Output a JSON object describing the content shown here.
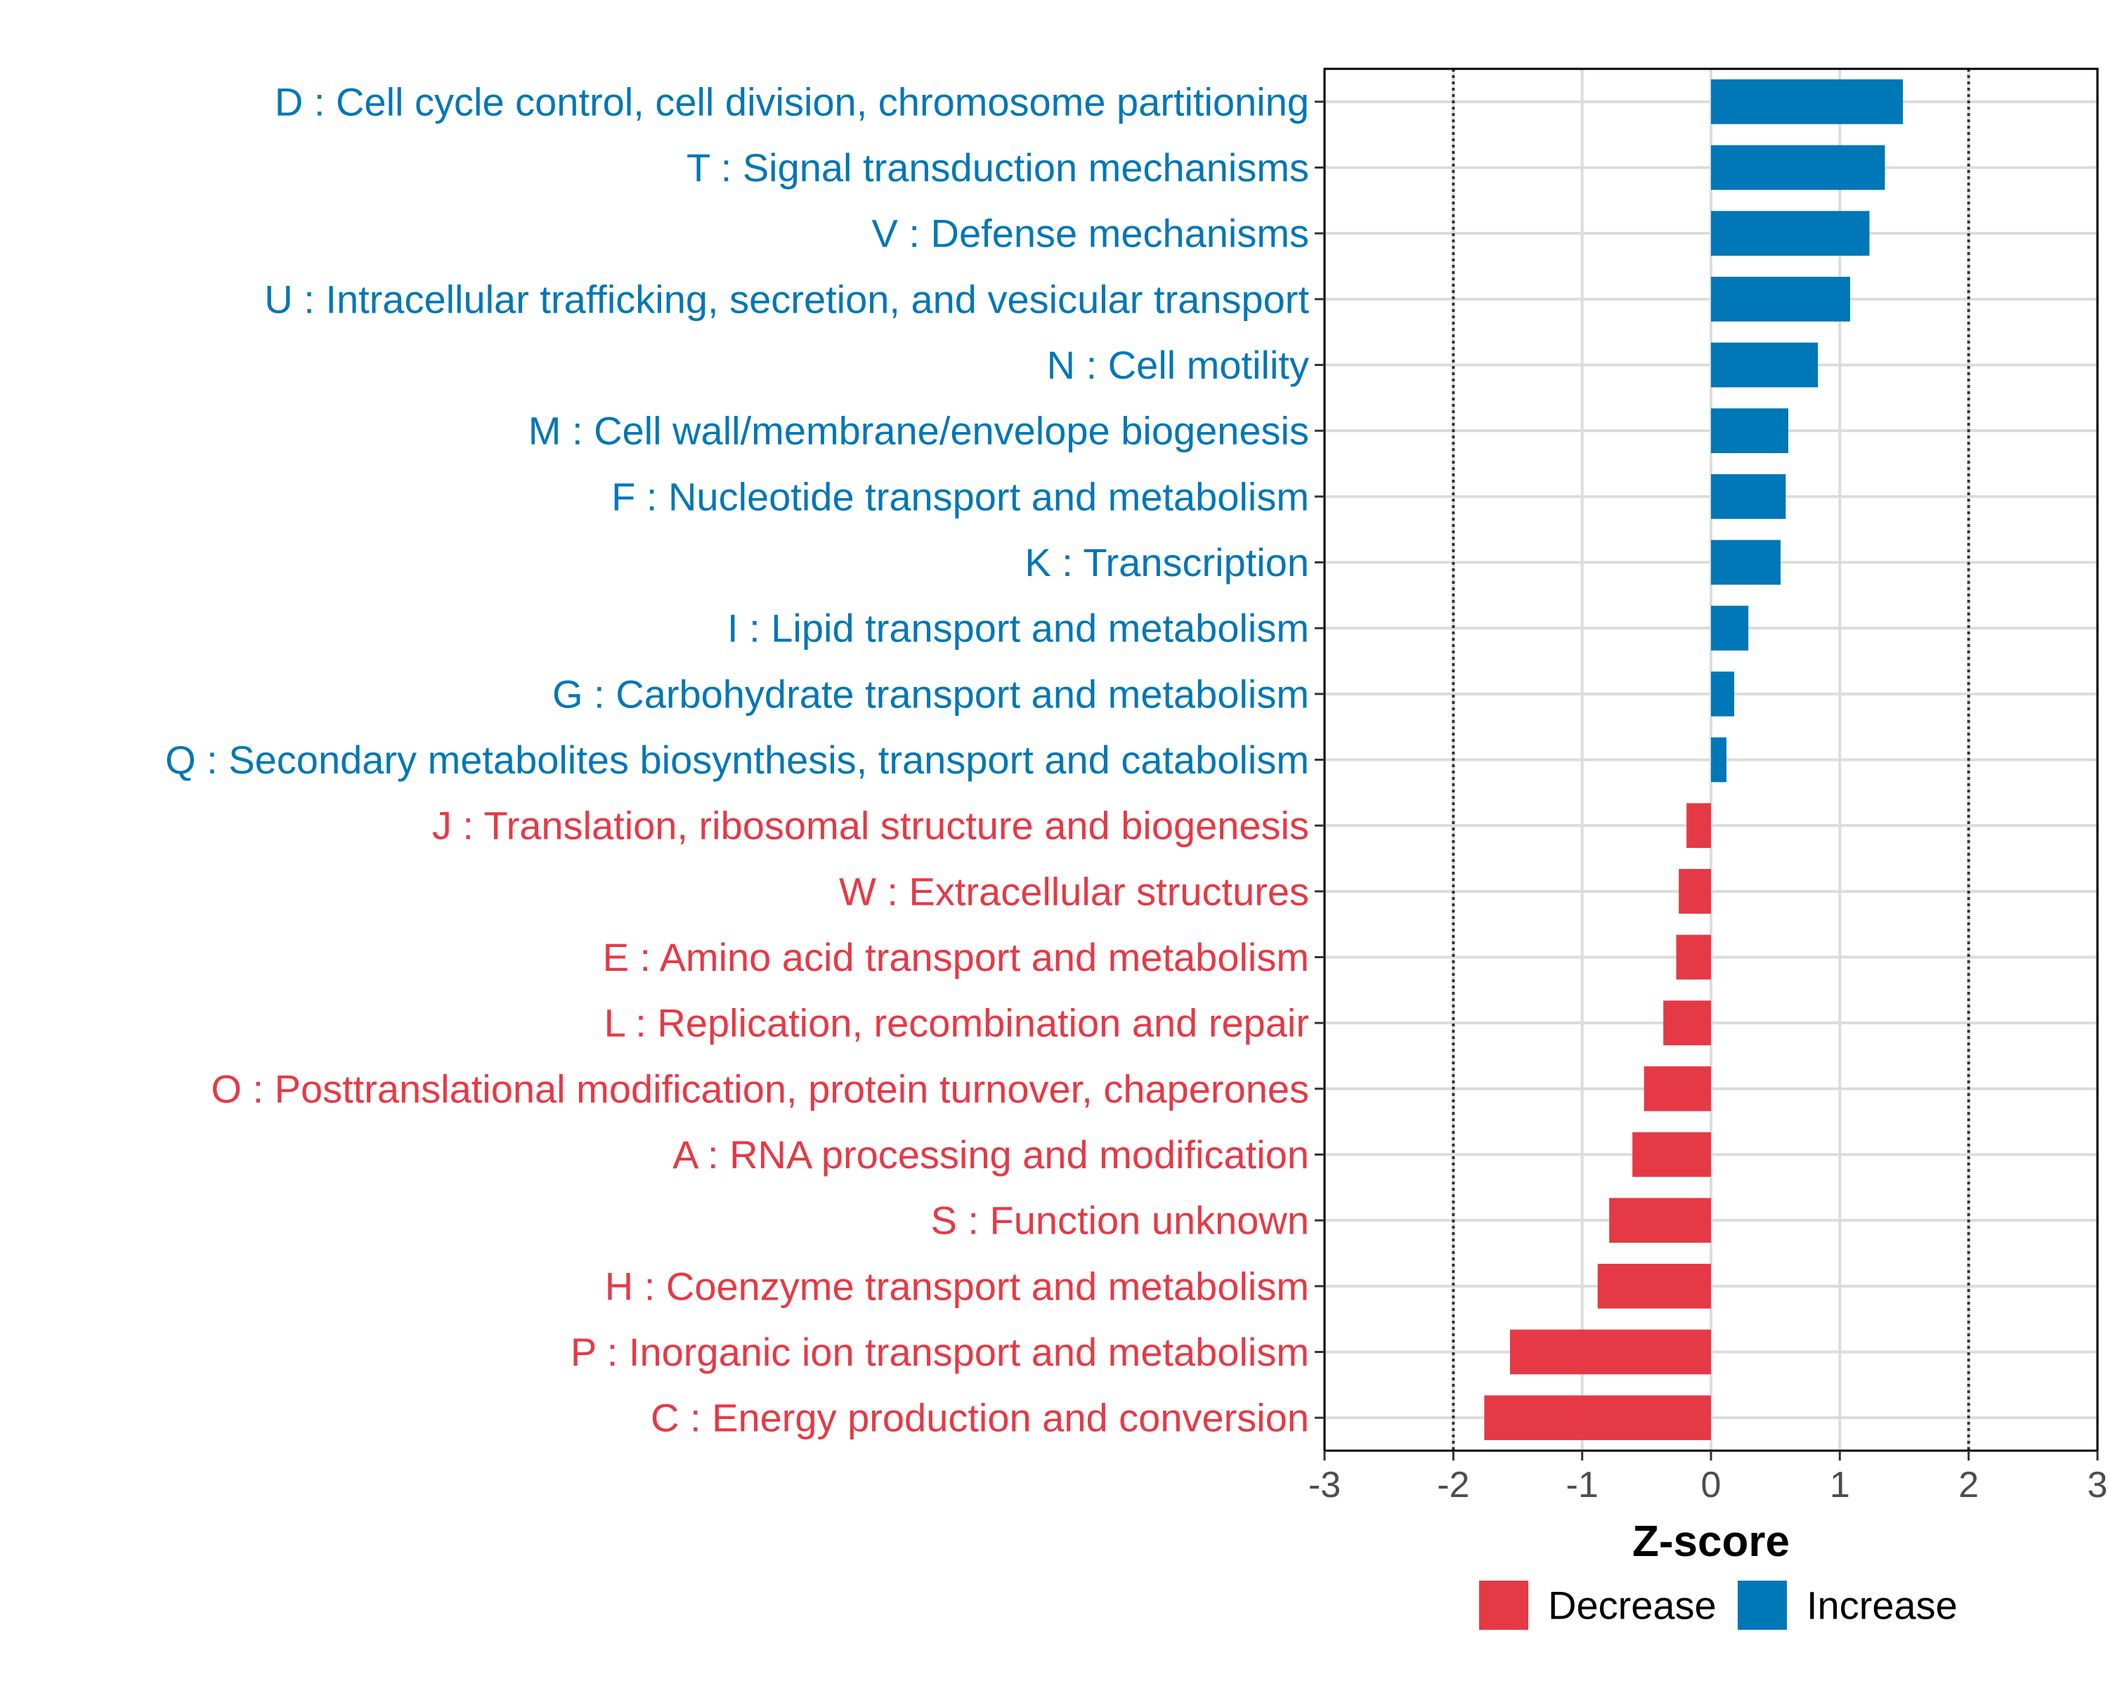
{
  "chart_data": {
    "type": "bar",
    "orientation": "horizontal",
    "title": "",
    "xlabel": "Z-score",
    "ylabel": "",
    "xlim": [
      -3,
      3
    ],
    "x_ticks": [
      "-3",
      "-2",
      "-1",
      "0",
      "1",
      "2",
      "3"
    ],
    "reference_lines": [
      -2,
      2
    ],
    "grid": true,
    "categories": [
      "D : Cell cycle control, cell division, chromosome partitioning",
      "T : Signal transduction mechanisms",
      "V : Defense mechanisms",
      "U : Intracellular trafficking, secretion, and vesicular transport",
      "N : Cell motility",
      "M : Cell wall/membrane/envelope biogenesis",
      "F : Nucleotide transport and metabolism",
      "K : Transcription",
      "I : Lipid transport and metabolism",
      "G : Carbohydrate transport and metabolism",
      "Q : Secondary metabolites biosynthesis, transport and catabolism",
      "J : Translation, ribosomal structure and biogenesis",
      "W : Extracellular structures",
      "E : Amino acid transport and metabolism",
      "L : Replication, recombination and repair",
      "O : Posttranslational modification, protein turnover, chaperones",
      "A : RNA processing and modification",
      "S : Function unknown",
      "H : Coenzyme transport and metabolism",
      "P : Inorganic ion transport and metabolism",
      "C : Energy production and conversion"
    ],
    "values": [
      1.49,
      1.35,
      1.23,
      1.08,
      0.83,
      0.6,
      0.58,
      0.54,
      0.29,
      0.18,
      0.12,
      -0.19,
      -0.25,
      -0.27,
      -0.37,
      -0.52,
      -0.61,
      -0.79,
      -0.88,
      -1.56,
      -1.76
    ],
    "groups": [
      "Increase",
      "Increase",
      "Increase",
      "Increase",
      "Increase",
      "Increase",
      "Increase",
      "Increase",
      "Increase",
      "Increase",
      "Increase",
      "Decrease",
      "Decrease",
      "Decrease",
      "Decrease",
      "Decrease",
      "Decrease",
      "Decrease",
      "Decrease",
      "Decrease",
      "Decrease"
    ],
    "legend": {
      "position": "bottom",
      "entries": [
        {
          "name": "Decrease",
          "color": "#E63946"
        },
        {
          "name": "Increase",
          "color": "#0077B6"
        }
      ]
    },
    "colors": {
      "Decrease": "#E63946",
      "Increase": "#0077B6"
    }
  }
}
